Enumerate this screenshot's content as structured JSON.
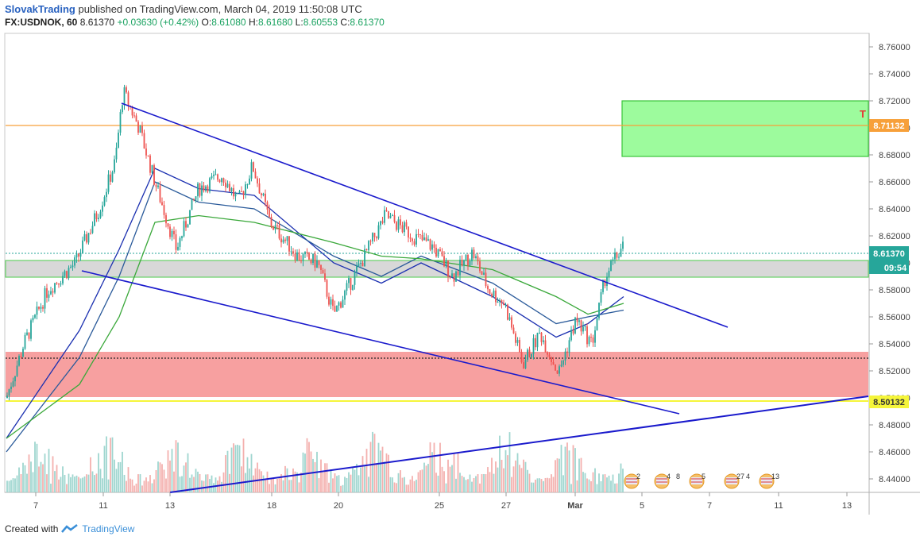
{
  "header": {
    "author": "SlovakTrading",
    "published_text": "published on TradingView.com, March 04, 2019 11:50:08 UTC",
    "symbol": "FX:USDNOK, 60",
    "last": "8.61370",
    "change": "+0.03630 (+0.42%)",
    "open_label": "O:",
    "open": "8.61080",
    "high_label": "H:",
    "high": "8.61680",
    "low_label": "L:",
    "low": "8.60553",
    "close_label": "C:",
    "close": "8.61370"
  },
  "footer": {
    "created_with": "Created with",
    "brand": "TradingView"
  },
  "badges": {
    "price_last": "8.61370",
    "countdown": "09:54",
    "level_top": "8.71132",
    "level_bottom": "8.50132",
    "zone_letter": "T"
  },
  "colors": {
    "up": "#26a69a",
    "down": "#ef5350",
    "trendline": "#1a1acc",
    "ma_fast": "#1a2fb0",
    "ma_mid": "#2a5a9a",
    "ma_slow": "#3aa83a",
    "green_zone": "#9dfb9d",
    "red_zone": "#f7a0a0",
    "grey_zone": "#d8d8d8",
    "orange_level": "#f7a03a",
    "yellow_level": "#f5f53a"
  },
  "chart_data": {
    "type": "candlestick",
    "ylim": [
      8.43,
      8.77
    ],
    "y_ticks": [
      8.44,
      8.46,
      8.48,
      8.5,
      8.52,
      8.54,
      8.56,
      8.58,
      8.6,
      8.62,
      8.64,
      8.66,
      8.68,
      8.7,
      8.72,
      8.74,
      8.76
    ],
    "y_tick_labels": [
      "8.44000",
      "8.46000",
      "8.48000",
      "8.50000",
      "8.52000",
      "8.54000",
      "8.56000",
      "8.58000",
      "8.60000",
      "8.62000",
      "8.64000",
      "8.66000",
      "8.68000",
      "8.70000",
      "8.72000",
      "8.74000",
      "8.76000"
    ],
    "x_ticks": [
      "7",
      "11",
      "13",
      "18",
      "20",
      "25",
      "27",
      "Mar",
      "5",
      "7",
      "11",
      "13"
    ],
    "price_path": [
      [
        "7",
        8.5
      ],
      [
        "7",
        8.54
      ],
      [
        "8",
        8.58
      ],
      [
        "9",
        8.6
      ],
      [
        "10",
        8.64
      ],
      [
        "11",
        8.675
      ],
      [
        "12",
        8.727
      ],
      [
        "12",
        8.7
      ],
      [
        "13",
        8.66
      ],
      [
        "13",
        8.61
      ],
      [
        "14",
        8.655
      ],
      [
        "15",
        8.665
      ],
      [
        "16",
        8.645
      ],
      [
        "17",
        8.672
      ],
      [
        "18",
        8.63
      ],
      [
        "19",
        8.605
      ],
      [
        "20",
        8.6
      ],
      [
        "20",
        8.562
      ],
      [
        "21",
        8.595
      ],
      [
        "22",
        8.635
      ],
      [
        "23",
        8.62
      ],
      [
        "24",
        8.612
      ],
      [
        "25",
        8.59
      ],
      [
        "26",
        8.608
      ],
      [
        "26",
        8.58
      ],
      [
        "27",
        8.57
      ],
      [
        "27",
        8.525
      ],
      [
        "28",
        8.548
      ],
      [
        "28",
        8.518
      ],
      [
        "Mar 1",
        8.558
      ],
      [
        "Mar 2",
        8.54
      ],
      [
        "Mar 3",
        8.59
      ],
      [
        "Mar 4",
        8.6137
      ]
    ],
    "moving_averages": [
      {
        "values": [
          8.47,
          8.55,
          8.61,
          8.67,
          8.655,
          8.65,
          8.6,
          8.585,
          8.6,
          8.575,
          8.545,
          8.555,
          8.575
        ]
      },
      {
        "values": [
          8.46,
          8.53,
          8.59,
          8.66,
          8.645,
          8.64,
          8.605,
          8.59,
          8.605,
          8.585,
          8.555,
          8.56,
          8.565
        ]
      },
      {
        "values": [
          8.47,
          8.51,
          8.56,
          8.63,
          8.635,
          8.63,
          8.615,
          8.605,
          8.603,
          8.595,
          8.575,
          8.562,
          8.57
        ]
      }
    ],
    "levels": {
      "resistance": 8.71132,
      "support": 8.50132,
      "last_price": 8.6137,
      "target_zone": [
        8.689,
        8.73
      ],
      "grey_zone": [
        8.597,
        8.608
      ],
      "red_zone": [
        8.502,
        8.539
      ]
    },
    "trendlines": {
      "channel_upper": [
        [
          8.728,
          "11"
        ],
        [
          8.56,
          "8"
        ]
      ],
      "channel_lower": [
        [
          8.601,
          "10"
        ],
        [
          8.492,
          "6"
        ]
      ],
      "rising_support": [
        [
          8.431,
          "13"
        ],
        [
          8.503,
          "13+"
        ]
      ]
    },
    "events_row": [
      "2",
      "4",
      "8",
      "5",
      "27",
      "4",
      "13"
    ]
  }
}
